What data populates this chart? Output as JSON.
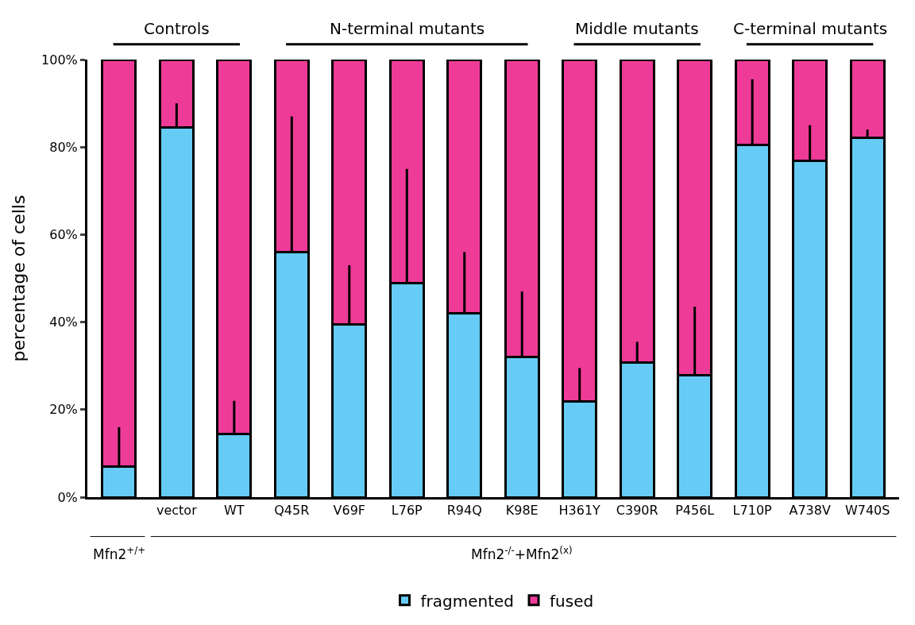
{
  "chart_data": {
    "type": "bar",
    "stacked": true,
    "ylabel": "percentage of cells",
    "categories": [
      null,
      "vector",
      "WT",
      "Q45R",
      "V69F",
      "L76P",
      "R94Q",
      "K98E",
      "H361Y",
      "C390R",
      "P456L",
      "L710P",
      "A738V",
      "W740S"
    ],
    "series": [
      {
        "name": "fragmented",
        "color": "#66ccf5",
        "values": [
          7,
          84.5,
          14.5,
          56,
          39.5,
          49,
          42,
          32,
          21.8,
          30.8,
          27.8,
          80.5,
          76.8,
          82.2
        ],
        "errors": [
          [
            7,
            16
          ],
          [
            84.5,
            90
          ],
          [
            14.5,
            22
          ],
          [
            56,
            87
          ],
          [
            39.5,
            53
          ],
          [
            49,
            75
          ],
          [
            42,
            56
          ],
          [
            32,
            47
          ],
          [
            21.8,
            29.5
          ],
          [
            30.8,
            35.5
          ],
          [
            27.8,
            43.5
          ],
          [
            80.5,
            95.5
          ],
          [
            76.8,
            85
          ],
          [
            82.2,
            84
          ]
        ]
      },
      {
        "name": "fused",
        "color": "#ef3b98",
        "values": [
          93,
          15.5,
          85.5,
          44,
          60.5,
          51,
          58,
          68,
          78.2,
          69.2,
          72.2,
          19.5,
          23.2,
          17.8
        ]
      }
    ],
    "ylim": [
      0,
      100
    ],
    "yticks": [
      {
        "value": 0,
        "label": "0%"
      },
      {
        "value": 20,
        "label": "20%"
      },
      {
        "value": 40,
        "label": "40%"
      },
      {
        "value": 60,
        "label": "60%"
      },
      {
        "value": 80,
        "label": "80%"
      },
      {
        "value": 100,
        "label": "100%"
      }
    ],
    "annotations": [
      "Controls",
      "N-terminal mutants",
      "Middle mutants",
      "C-terminal mutants",
      "Mfn2$^{+/+}$",
      "Mfn2$^{-/-}$+Mfn2$^{(x)}$"
    ],
    "legend": "bottom"
  }
}
